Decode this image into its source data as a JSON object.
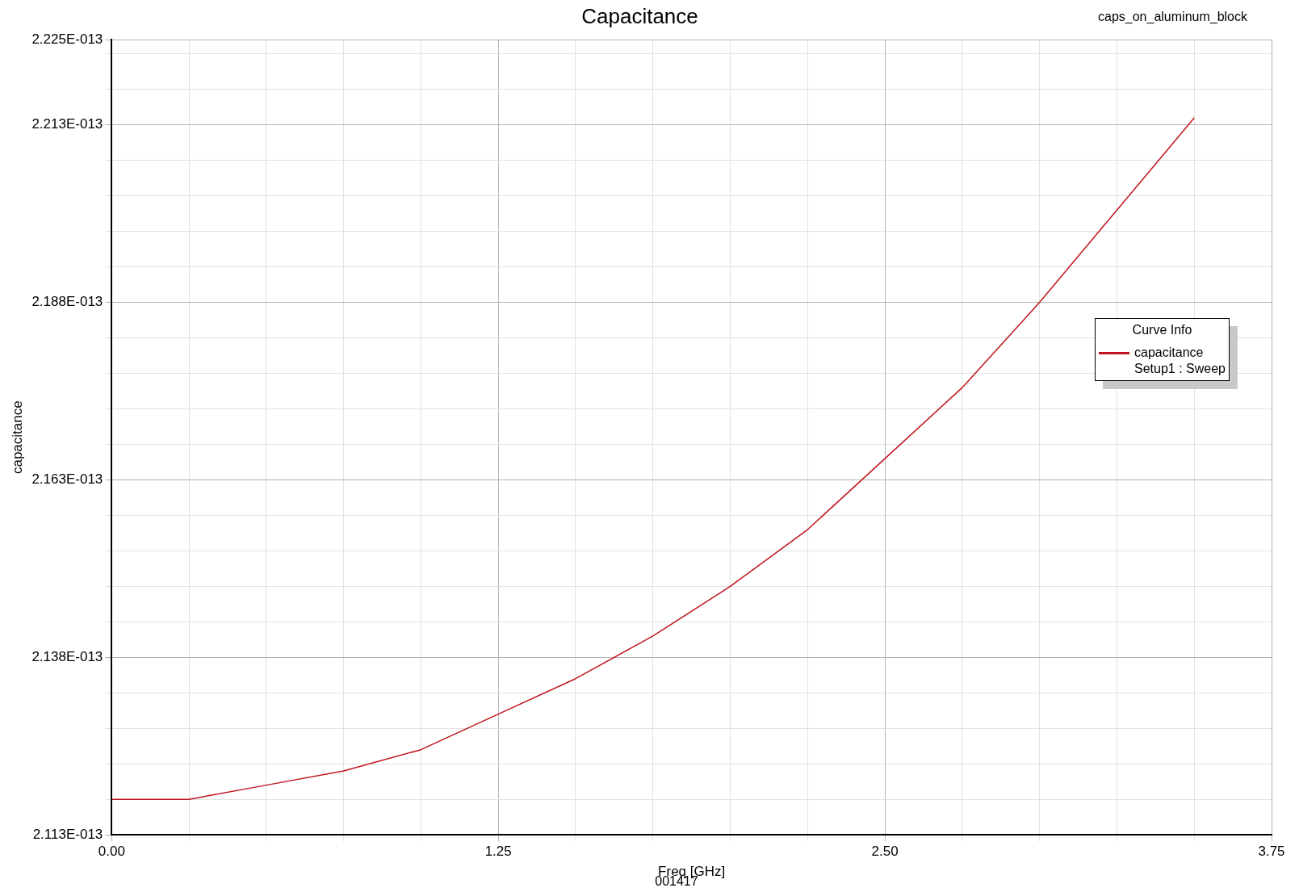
{
  "chart_data": {
    "type": "line",
    "title": "Capacitance",
    "subtitle": "caps_on_aluminum_block",
    "xlabel": "Freq [GHz]",
    "ylabel": "capacitance",
    "legend_title": "Curve Info",
    "legend": "right",
    "grid": true,
    "marker": "none",
    "line_style": "solid",
    "annotations": [
      "001417"
    ],
    "x": [
      0,
      0.12,
      0.25,
      0.5,
      0.75,
      1.0,
      1.25,
      1.5,
      1.75,
      2.0,
      2.25,
      2.5,
      2.75,
      3.0,
      3.25,
      3.5
    ],
    "series": [
      {
        "name": "capacitance\nSetup1 : Sweep",
        "color": "#c0141e",
        "values": [
          2.118e-13,
          2.118e-13,
          2.118e-13,
          2.12e-13,
          2.122e-13,
          2.125e-13,
          2.13e-13,
          2.135e-13,
          2.141e-13,
          2.148e-13,
          2.156e-13,
          2.166e-13,
          2.176e-13,
          2.188e-13,
          2.201e-13,
          2.214e-13
        ]
      }
    ],
    "xlim": [
      0,
      3.75
    ],
    "xticks": [
      {
        "value": 0,
        "label": "0.00"
      },
      {
        "value": 0.25,
        "label": null
      },
      {
        "value": 0.5,
        "label": null
      },
      {
        "value": 0.75,
        "label": null
      },
      {
        "value": 1.0,
        "label": null
      },
      {
        "value": 1.25,
        "label": "1.25"
      },
      {
        "value": 1.5,
        "label": null
      },
      {
        "value": 1.75,
        "label": null
      },
      {
        "value": 2.0,
        "label": null
      },
      {
        "value": 2.25,
        "label": null
      },
      {
        "value": 2.5,
        "label": "2.50"
      },
      {
        "value": 2.75,
        "label": null
      },
      {
        "value": 3.0,
        "label": null
      },
      {
        "value": 3.25,
        "label": null
      },
      {
        "value": 3.5,
        "label": null
      },
      {
        "value": 3.75,
        "label": "3.75"
      }
    ],
    "ylim": [
      2.113e-13,
      2.225e-13
    ],
    "yticks": [
      {
        "value": 2.113e-13,
        "label": "2.113E-013"
      },
      {
        "value": 2.118e-13,
        "label": null
      },
      {
        "value": 2.123e-13,
        "label": null
      },
      {
        "value": 2.128e-13,
        "label": null
      },
      {
        "value": 2.133e-13,
        "label": null
      },
      {
        "value": 2.138e-13,
        "label": "2.138E-013"
      },
      {
        "value": 2.143e-13,
        "label": null
      },
      {
        "value": 2.148e-13,
        "label": null
      },
      {
        "value": 2.153e-13,
        "label": null
      },
      {
        "value": 2.158e-13,
        "label": null
      },
      {
        "value": 2.163e-13,
        "label": "2.163E-013"
      },
      {
        "value": 2.168e-13,
        "label": null
      },
      {
        "value": 2.173e-13,
        "label": null
      },
      {
        "value": 2.178e-13,
        "label": null
      },
      {
        "value": 2.183e-13,
        "label": null
      },
      {
        "value": 2.188e-13,
        "label": "2.188E-013"
      },
      {
        "value": 2.193e-13,
        "label": null
      },
      {
        "value": 2.198e-13,
        "label": null
      },
      {
        "value": 2.203e-13,
        "label": null
      },
      {
        "value": 2.208e-13,
        "label": null
      },
      {
        "value": 2.213e-13,
        "label": "2.213E-013"
      },
      {
        "value": 2.218e-13,
        "label": null
      },
      {
        "value": 2.223e-13,
        "label": null
      },
      {
        "value": 2.225e-13,
        "label": "2.225E-013"
      }
    ]
  }
}
